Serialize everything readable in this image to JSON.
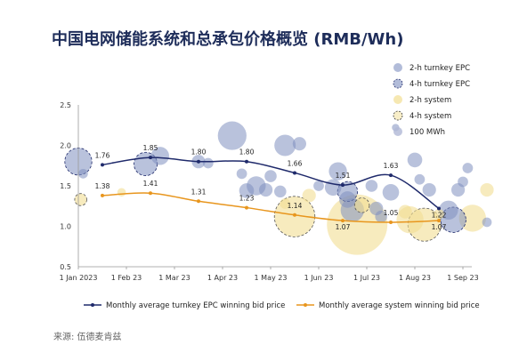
{
  "title": "中国电网储能系统和总承包价格概览 (RMB/Wh)",
  "source": "来源: 伍德麦肯兹",
  "colors": {
    "epc": "#7f8fbf",
    "epc_line": "#1f2a6b",
    "sys": "#f2de92",
    "sys_line": "#e8961e",
    "grid": "#d9d9d9"
  },
  "chart_data": {
    "type": "scatter",
    "ylim": [
      0.5,
      2.5
    ],
    "yticks": [
      "0.5",
      "1.0",
      "1.5",
      "2.0",
      "2.5"
    ],
    "xticks": [
      "1 Jan 2023",
      "1 Feb 23",
      "1 Mar 23",
      "1 Apr 23",
      "1 May 23",
      "1 Jun 23",
      "1 Jul 23",
      "1 Aug 23",
      "1 Sep 23"
    ],
    "xlabel": "",
    "ylabel": "",
    "legend_top": [
      {
        "name": "2-h turnkey EPC",
        "style": "epc"
      },
      {
        "name": "4-h turnkey EPC",
        "style": "epc-dashed"
      },
      {
        "name": "2-h system",
        "style": "sys"
      },
      {
        "name": "4-h system",
        "style": "sys-dashed"
      },
      {
        "name": "100 MWh",
        "style": "size"
      }
    ],
    "lines": [
      {
        "name": "Monthly average turnkey EPC winning bid price",
        "month_index": [
          0.5,
          1.5,
          2.5,
          3.5,
          4.5,
          5.5,
          6.5,
          7.5
        ],
        "values": [
          1.76,
          1.85,
          1.8,
          1.8,
          1.66,
          1.51,
          1.63,
          1.22
        ],
        "labels": [
          "1.76",
          "1.85",
          "1.80",
          "1.80",
          "1.66",
          "1.51",
          "1.63",
          "1.22"
        ]
      },
      {
        "name": "Monthly average system winning bid price",
        "month_index": [
          0.5,
          1.5,
          2.5,
          3.5,
          4.5,
          5.5,
          6.5,
          7.5
        ],
        "values": [
          1.38,
          1.41,
          1.31,
          1.23,
          1.14,
          1.07,
          1.05,
          1.07
        ],
        "labels": [
          "1.38",
          "1.41",
          "1.31",
          "1.23",
          "1.14",
          "1.07",
          "1.05",
          "1.07"
        ]
      }
    ],
    "bubbles": [
      {
        "m": 0.0,
        "y": 1.8,
        "mwh": 40,
        "kind": "epc4"
      },
      {
        "m": 0.1,
        "y": 1.65,
        "mwh": 5,
        "kind": "epc2"
      },
      {
        "m": 0.05,
        "y": 1.33,
        "mwh": 8,
        "kind": "sys4"
      },
      {
        "m": 0.9,
        "y": 1.42,
        "mwh": 4,
        "kind": "sys2"
      },
      {
        "m": 1.4,
        "y": 1.77,
        "mwh": 30,
        "kind": "epc4"
      },
      {
        "m": 1.7,
        "y": 1.87,
        "mwh": 18,
        "kind": "epc2"
      },
      {
        "m": 2.5,
        "y": 1.8,
        "mwh": 10,
        "kind": "epc2"
      },
      {
        "m": 2.7,
        "y": 1.78,
        "mwh": 6,
        "kind": "epc2"
      },
      {
        "m": 3.2,
        "y": 2.12,
        "mwh": 45,
        "kind": "epc2"
      },
      {
        "m": 3.4,
        "y": 1.65,
        "mwh": 6,
        "kind": "epc2"
      },
      {
        "m": 3.5,
        "y": 1.44,
        "mwh": 12,
        "kind": "epc2"
      },
      {
        "m": 3.7,
        "y": 1.5,
        "mwh": 20,
        "kind": "epc2"
      },
      {
        "m": 3.9,
        "y": 1.45,
        "mwh": 10,
        "kind": "epc2"
      },
      {
        "m": 4.0,
        "y": 1.62,
        "mwh": 8,
        "kind": "epc2"
      },
      {
        "m": 4.3,
        "y": 2.0,
        "mwh": 25,
        "kind": "epc2"
      },
      {
        "m": 4.6,
        "y": 2.02,
        "mwh": 10,
        "kind": "epc2"
      },
      {
        "m": 4.8,
        "y": 1.38,
        "mwh": 10,
        "kind": "sys2"
      },
      {
        "m": 4.3,
        "y": 1.28,
        "mwh": 6,
        "kind": "sys2"
      },
      {
        "m": 4.5,
        "y": 1.12,
        "mwh": 90,
        "kind": "sys4"
      },
      {
        "m": 4.2,
        "y": 1.43,
        "mwh": 8,
        "kind": "epc2"
      },
      {
        "m": 5.0,
        "y": 1.5,
        "mwh": 6,
        "kind": "epc2"
      },
      {
        "m": 5.3,
        "y": 1.48,
        "mwh": 15,
        "kind": "epc2"
      },
      {
        "m": 5.4,
        "y": 1.68,
        "mwh": 18,
        "kind": "epc2"
      },
      {
        "m": 5.6,
        "y": 1.43,
        "mwh": 22,
        "kind": "epc4"
      },
      {
        "m": 5.6,
        "y": 1.33,
        "mwh": 15,
        "kind": "epc2"
      },
      {
        "m": 5.7,
        "y": 1.2,
        "mwh": 30,
        "kind": "epc2"
      },
      {
        "m": 5.8,
        "y": 1.02,
        "mwh": 200,
        "kind": "sys2"
      },
      {
        "m": 5.9,
        "y": 1.26,
        "mwh": 12,
        "kind": "sys4"
      },
      {
        "m": 6.1,
        "y": 1.5,
        "mwh": 8,
        "kind": "epc2"
      },
      {
        "m": 6.2,
        "y": 1.22,
        "mwh": 10,
        "kind": "epc2"
      },
      {
        "m": 6.3,
        "y": 1.12,
        "mwh": 8,
        "kind": "epc2"
      },
      {
        "m": 6.5,
        "y": 1.42,
        "mwh": 15,
        "kind": "epc2"
      },
      {
        "m": 6.6,
        "y": 2.22,
        "mwh": 3,
        "kind": "epc2"
      },
      {
        "m": 6.8,
        "y": 1.18,
        "mwh": 10,
        "kind": "sys2"
      },
      {
        "m": 6.9,
        "y": 1.08,
        "mwh": 40,
        "kind": "sys2"
      },
      {
        "m": 7.0,
        "y": 1.82,
        "mwh": 12,
        "kind": "epc2"
      },
      {
        "m": 7.1,
        "y": 1.58,
        "mwh": 6,
        "kind": "epc2"
      },
      {
        "m": 7.2,
        "y": 1.02,
        "mwh": 60,
        "kind": "sys4"
      },
      {
        "m": 7.3,
        "y": 1.45,
        "mwh": 10,
        "kind": "epc2"
      },
      {
        "m": 7.5,
        "y": 1.15,
        "mwh": 6,
        "kind": "sys2"
      },
      {
        "m": 7.7,
        "y": 1.2,
        "mwh": 20,
        "kind": "epc2"
      },
      {
        "m": 7.8,
        "y": 1.08,
        "mwh": 35,
        "kind": "epc4"
      },
      {
        "m": 7.9,
        "y": 1.45,
        "mwh": 10,
        "kind": "epc2"
      },
      {
        "m": 8.0,
        "y": 1.55,
        "mwh": 6,
        "kind": "epc2"
      },
      {
        "m": 8.1,
        "y": 1.72,
        "mwh": 6,
        "kind": "epc2"
      },
      {
        "m": 8.2,
        "y": 1.1,
        "mwh": 40,
        "kind": "sys2"
      },
      {
        "m": 8.5,
        "y": 1.45,
        "mwh": 10,
        "kind": "sys2"
      },
      {
        "m": 8.5,
        "y": 1.05,
        "mwh": 5,
        "kind": "epc2"
      }
    ]
  }
}
